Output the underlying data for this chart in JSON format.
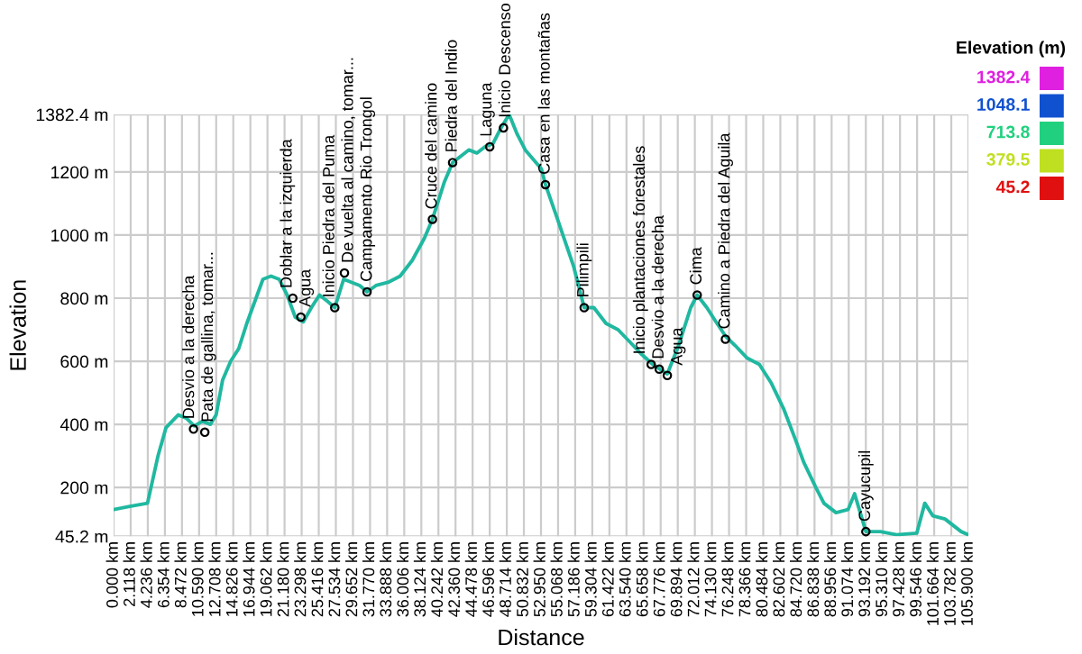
{
  "chart_data": {
    "type": "line",
    "xlabel": "Distance",
    "ylabel": "Elevation",
    "clabel": "Elevation (m)",
    "cticks": [
      1382.4,
      1048.1,
      713.8,
      379.5,
      45.2
    ],
    "color": "#20b8a0",
    "xlim": [
      0,
      105.9
    ],
    "ylim": [
      45.2,
      1382.4
    ],
    "grid": true,
    "marker": "none",
    "line_style": "solid",
    "yticks": [
      {
        "value": 45.2,
        "label": "45.2 m"
      },
      {
        "value": 200,
        "label": "200 m"
      },
      {
        "value": 400,
        "label": "400 m"
      },
      {
        "value": 600,
        "label": "600 m"
      },
      {
        "value": 800,
        "label": "800 m"
      },
      {
        "value": 1000,
        "label": "1000 m"
      },
      {
        "value": 1200,
        "label": "1200 m"
      },
      {
        "value": 1382.4,
        "label": "1382.4 m"
      }
    ],
    "xticks": [
      {
        "value": 0,
        "label": "0.000 km"
      },
      {
        "value": 2.118,
        "label": "2.118 km"
      },
      {
        "value": 4.236,
        "label": "4.236 km"
      },
      {
        "value": 6.354,
        "label": "6.354 km"
      },
      {
        "value": 8.472,
        "label": "8.472 km"
      },
      {
        "value": 10.59,
        "label": "10.590 km"
      },
      {
        "value": 12.708,
        "label": "12.708 km"
      },
      {
        "value": 14.826,
        "label": "14.826 km"
      },
      {
        "value": 16.944,
        "label": "16.944 km"
      },
      {
        "value": 19.062,
        "label": "19.062 km"
      },
      {
        "value": 21.18,
        "label": "21.180 km"
      },
      {
        "value": 23.298,
        "label": "23.298 km"
      },
      {
        "value": 25.416,
        "label": "25.416 km"
      },
      {
        "value": 27.534,
        "label": "27.534 km"
      },
      {
        "value": 29.652,
        "label": "29.652 km"
      },
      {
        "value": 31.77,
        "label": "31.770 km"
      },
      {
        "value": 33.888,
        "label": "33.888 km"
      },
      {
        "value": 36.006,
        "label": "36.006 km"
      },
      {
        "value": 38.124,
        "label": "38.124 km"
      },
      {
        "value": 40.242,
        "label": "40.242 km"
      },
      {
        "value": 42.36,
        "label": "42.360 km"
      },
      {
        "value": 44.478,
        "label": "44.478 km"
      },
      {
        "value": 46.596,
        "label": "46.596 km"
      },
      {
        "value": 48.714,
        "label": "48.714 km"
      },
      {
        "value": 50.832,
        "label": "50.832 km"
      },
      {
        "value": 52.95,
        "label": "52.950 km"
      },
      {
        "value": 55.068,
        "label": "55.068 km"
      },
      {
        "value": 57.186,
        "label": "57.186 km"
      },
      {
        "value": 59.304,
        "label": "59.304 km"
      },
      {
        "value": 61.422,
        "label": "61.422 km"
      },
      {
        "value": 63.54,
        "label": "63.540 km"
      },
      {
        "value": 65.658,
        "label": "65.658 km"
      },
      {
        "value": 67.776,
        "label": "67.776 km"
      },
      {
        "value": 69.894,
        "label": "69.894 km"
      },
      {
        "value": 72.012,
        "label": "72.012 km"
      },
      {
        "value": 74.13,
        "label": "74.130 km"
      },
      {
        "value": 76.248,
        "label": "76.248 km"
      },
      {
        "value": 78.366,
        "label": "78.366 km"
      },
      {
        "value": 80.484,
        "label": "80.484 km"
      },
      {
        "value": 82.602,
        "label": "82.602 km"
      },
      {
        "value": 84.72,
        "label": "84.720 km"
      },
      {
        "value": 86.838,
        "label": "86.838 km"
      },
      {
        "value": 88.956,
        "label": "88.956 km"
      },
      {
        "value": 91.074,
        "label": "91.074 km"
      },
      {
        "value": 93.192,
        "label": "93.192 km"
      },
      {
        "value": 95.31,
        "label": "95.310 km"
      },
      {
        "value": 97.428,
        "label": "97.428 km"
      },
      {
        "value": 99.546,
        "label": "99.546 km"
      },
      {
        "value": 101.664,
        "label": "101.664 km"
      },
      {
        "value": 103.782,
        "label": "103.782 km"
      },
      {
        "value": 105.9,
        "label": "105.900 km"
      }
    ],
    "x": [
      0,
      2,
      4.2,
      5.5,
      6.5,
      8,
      9,
      10,
      11,
      12,
      12.7,
      13.5,
      14.5,
      15.5,
      16.5,
      17.5,
      18.5,
      19.5,
      20.5,
      21.5,
      22.5,
      23.5,
      24.5,
      25.5,
      26.5,
      27.4,
      28.5,
      29.5,
      30.5,
      31.4,
      32.5,
      34,
      35.5,
      37,
      38.5,
      39.5,
      41,
      42,
      43,
      44,
      45,
      46,
      47,
      48,
      49,
      50,
      51,
      52,
      53,
      53.5,
      55,
      57,
      58.3,
      59.5,
      61,
      62.5,
      64,
      65.5,
      66.8,
      68.6,
      70,
      71.5,
      72.3,
      73.5,
      74.5,
      75.8,
      77,
      78.5,
      80,
      81.5,
      83,
      84.5,
      85.5,
      87,
      88,
      89.5,
      91,
      91.8,
      93.2,
      95,
      97,
      99.5,
      100.5,
      101.5,
      103,
      104,
      105,
      105.9
    ],
    "values": [
      130,
      140,
      150,
      300,
      390,
      430,
      420,
      395,
      410,
      400,
      430,
      540,
      600,
      640,
      720,
      790,
      860,
      870,
      860,
      810,
      740,
      725,
      770,
      810,
      790,
      770,
      860,
      850,
      840,
      820,
      840,
      850,
      870,
      920,
      990,
      1050,
      1170,
      1230,
      1250,
      1270,
      1260,
      1280,
      1290,
      1340,
      1382.4,
      1320,
      1270,
      1240,
      1210,
      1160,
      1050,
      900,
      770,
      770,
      720,
      700,
      660,
      620,
      590,
      560,
      650,
      770,
      810,
      770,
      730,
      680,
      650,
      610,
      590,
      530,
      450,
      350,
      280,
      200,
      150,
      120,
      130,
      180,
      60,
      60,
      50,
      55,
      150,
      110,
      100,
      80,
      60,
      50
    ],
    "annotations": [
      {
        "text": "Desvio a la derecha",
        "x": 9.9,
        "y": 385
      },
      {
        "text": "Pata de gallina, tomar...",
        "x": 11.3,
        "y": 375
      },
      {
        "text": "Doblar a la izquierda",
        "x": 22.2,
        "y": 800
      },
      {
        "text": "Agua",
        "x": 23.2,
        "y": 740
      },
      {
        "text": "Inicio Piedra del Puma",
        "x": 27.4,
        "y": 770
      },
      {
        "text": "De vuelta al camino, tomar...",
        "x": 28.6,
        "y": 880
      },
      {
        "text": "Campamento Rio Trongol",
        "x": 31.4,
        "y": 820
      },
      {
        "text": "Cruce del camino",
        "x": 39.5,
        "y": 1050
      },
      {
        "text": "Piedra del Indio",
        "x": 42,
        "y": 1230
      },
      {
        "text": "Laguna",
        "x": 46.6,
        "y": 1280
      },
      {
        "text": "Inicio Descenso",
        "x": 48.3,
        "y": 1340
      },
      {
        "text": "Casa en las montañas",
        "x": 53.5,
        "y": 1160
      },
      {
        "text": "Pilimpili",
        "x": 58.3,
        "y": 770
      },
      {
        "text": "Inicio plantaciones forestales",
        "x": 66.6,
        "y": 590
      },
      {
        "text": "Desvio a la derecha",
        "x": 67.6,
        "y": 575
      },
      {
        "text": "Agua",
        "x": 68.6,
        "y": 555
      },
      {
        "text": "Cima",
        "x": 72.3,
        "y": 810
      },
      {
        "text": "Camino a Piedra del Aguila",
        "x": 75.8,
        "y": 670
      },
      {
        "text": "Cayucupil",
        "x": 93.2,
        "y": 60
      }
    ]
  }
}
